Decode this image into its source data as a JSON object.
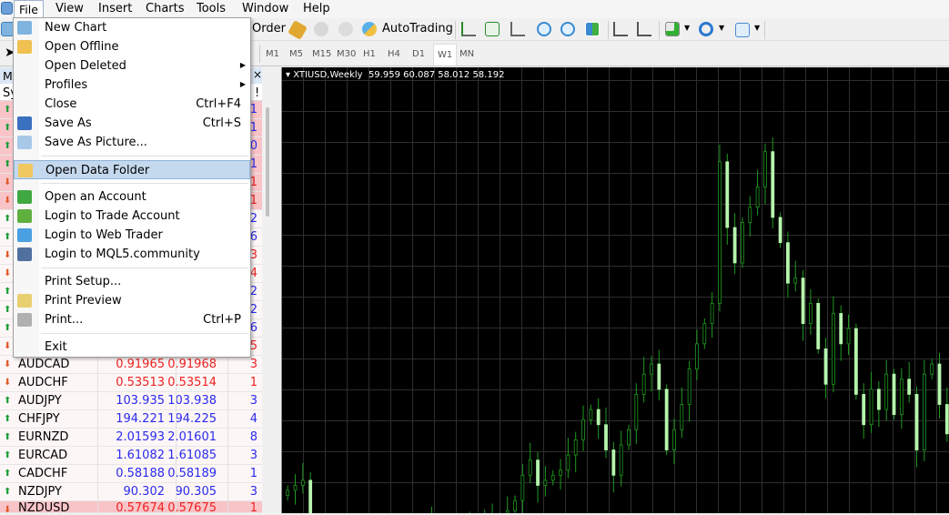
{
  "menubar": {
    "items": [
      "File",
      "View",
      "Insert",
      "Charts",
      "Tools",
      "Window",
      "Help"
    ]
  },
  "toolbar": {
    "order_label": "Order",
    "autotrading_label": "AutoTrading",
    "icons": [
      "new-order-icon",
      "expert-icon",
      "signal-icon",
      "autotrading-icon",
      "bar-chart-icon",
      "candlestick-icon",
      "line-chart-icon",
      "zoom-in-icon",
      "zoom-out-icon",
      "tile-windows-icon",
      "chart-shift-icon",
      "autoscroll-icon",
      "indicators-icon",
      "periods-icon",
      "templates-icon"
    ]
  },
  "timeframes": {
    "items": [
      "M1",
      "M5",
      "M15",
      "M30",
      "H1",
      "H4",
      "D1",
      "W1",
      "MN"
    ],
    "active": "W1"
  },
  "market_watch": {
    "title": "Ma",
    "header_symbol": "Sy",
    "header_spread": "!",
    "close": "×",
    "rows": [
      {
        "dir": "up",
        "symbol": "",
        "bid": "",
        "ask": "",
        "spread": "1",
        "color": "blue",
        "hl": true
      },
      {
        "dir": "up",
        "symbol": "",
        "bid": "",
        "ask": "",
        "spread": "1",
        "color": "blue",
        "hl": true
      },
      {
        "dir": "up",
        "symbol": "",
        "bid": "",
        "ask": "",
        "spread": "0",
        "color": "blue",
        "hl": true
      },
      {
        "dir": "up",
        "symbol": "",
        "bid": "",
        "ask": "",
        "spread": "1",
        "color": "blue",
        "hl": true
      },
      {
        "dir": "down",
        "symbol": "",
        "bid": "",
        "ask": "",
        "spread": "1",
        "color": "red",
        "hl": true
      },
      {
        "dir": "down",
        "symbol": "",
        "bid": "",
        "ask": "",
        "spread": "1",
        "color": "red",
        "hl": true
      },
      {
        "dir": "up",
        "symbol": "",
        "bid": "",
        "ask": "",
        "spread": "2",
        "color": "blue",
        "hl": false
      },
      {
        "dir": "up",
        "symbol": "",
        "bid": "",
        "ask": "",
        "spread": "6",
        "color": "blue",
        "hl": false
      },
      {
        "dir": "down",
        "symbol": "",
        "bid": "",
        "ask": "",
        "spread": "3",
        "color": "red",
        "hl": false
      },
      {
        "dir": "down",
        "symbol": "",
        "bid": "",
        "ask": "",
        "spread": "4",
        "color": "red",
        "hl": false
      },
      {
        "dir": "up",
        "symbol": "",
        "bid": "",
        "ask": "",
        "spread": "2",
        "color": "blue",
        "hl": false
      },
      {
        "dir": "up",
        "symbol": "",
        "bid": "",
        "ask": "",
        "spread": "2",
        "color": "blue",
        "hl": false
      },
      {
        "dir": "up",
        "symbol": "",
        "bid": "",
        "ask": "",
        "spread": "6",
        "color": "blue",
        "hl": false
      },
      {
        "dir": "down",
        "symbol": "",
        "bid": "",
        "ask": "",
        "spread": "5",
        "color": "red",
        "hl": false
      },
      {
        "dir": "down",
        "symbol": "AUDCAD",
        "bid": "0.91965",
        "ask": "0.91968",
        "spread": "3",
        "color": "red",
        "hl": false
      },
      {
        "dir": "down",
        "symbol": "AUDCHF",
        "bid": "0.53513",
        "ask": "0.53514",
        "spread": "1",
        "color": "red",
        "hl": false
      },
      {
        "dir": "up",
        "symbol": "AUDJPY",
        "bid": "103.935",
        "ask": "103.938",
        "spread": "3",
        "color": "blue",
        "hl": false
      },
      {
        "dir": "up",
        "symbol": "CHFJPY",
        "bid": "194.221",
        "ask": "194.225",
        "spread": "4",
        "color": "blue",
        "hl": false
      },
      {
        "dir": "up",
        "symbol": "EURNZD",
        "bid": "2.01593",
        "ask": "2.01601",
        "spread": "8",
        "color": "blue",
        "hl": false
      },
      {
        "dir": "up",
        "symbol": "EURCAD",
        "bid": "1.61082",
        "ask": "1.61085",
        "spread": "3",
        "color": "blue",
        "hl": false
      },
      {
        "dir": "up",
        "symbol": "CADCHF",
        "bid": "0.58188",
        "ask": "0.58189",
        "spread": "1",
        "color": "blue",
        "hl": false
      },
      {
        "dir": "up",
        "symbol": "NZDJPY",
        "bid": "90.302",
        "ask": "90.305",
        "spread": "3",
        "color": "blue",
        "hl": false
      },
      {
        "dir": "down",
        "symbol": "NZDUSD",
        "bid": "0.57674",
        "ask": "0.57675",
        "spread": "1",
        "color": "red",
        "hl": true
      }
    ]
  },
  "file_menu": {
    "items": [
      {
        "label": "New Chart",
        "icon": "new-chart-icon"
      },
      {
        "label": "Open Offline",
        "icon": "open-folder-icon"
      },
      {
        "label": "Open Deleted",
        "submenu": true
      },
      {
        "label": "Profiles",
        "submenu": true
      },
      {
        "label": "Close",
        "shortcut": "Ctrl+F4"
      },
      {
        "label": "Save As",
        "shortcut": "Ctrl+S",
        "icon": "save-icon"
      },
      {
        "label": "Save As Picture...",
        "icon": "save-picture-icon"
      },
      {
        "sep": true
      },
      {
        "label": "Open Data Folder",
        "icon": "folder-icon",
        "highlighted": true
      },
      {
        "sep": true
      },
      {
        "label": "Open an Account",
        "icon": "add-account-icon"
      },
      {
        "label": "Login to Trade Account",
        "icon": "login-account-icon"
      },
      {
        "label": "Login to Web Trader",
        "icon": "web-trader-icon"
      },
      {
        "label": "Login to MQL5.community",
        "icon": "mql5-icon"
      },
      {
        "sep": true
      },
      {
        "label": "Print Setup..."
      },
      {
        "label": "Print Preview",
        "icon": "print-preview-icon"
      },
      {
        "label": "Print...",
        "shortcut": "Ctrl+P",
        "icon": "printer-icon"
      },
      {
        "sep": true
      },
      {
        "label": "Exit"
      }
    ]
  },
  "chart_data": {
    "type": "candlestick",
    "title": "XTIUSD,Weekly",
    "ohlc_readout": "59.959 60.087 58.012 58.192",
    "grid": true,
    "ylim": [
      42.5,
      127.8
    ],
    "closes": [
      47,
      48,
      49,
      38,
      36,
      35,
      34,
      33,
      34,
      35,
      37,
      38,
      37,
      36,
      39,
      40,
      39,
      38,
      40,
      41,
      40,
      39,
      38,
      40,
      39,
      40,
      41,
      40,
      41,
      43,
      45,
      50,
      53,
      48,
      49,
      50,
      51,
      54,
      57,
      61,
      63,
      60,
      55,
      50,
      56,
      59,
      66,
      70,
      72,
      67,
      55,
      59,
      64,
      71,
      76,
      80,
      84,
      112,
      99,
      92,
      100,
      103,
      107,
      114,
      101,
      96,
      88,
      89,
      80,
      84,
      75,
      68,
      82,
      76,
      79,
      66,
      60,
      67,
      63,
      70,
      62,
      69,
      66,
      55,
      70,
      72,
      64,
      58.192
    ],
    "colors": {
      "background": "#000000",
      "grid": "#2e2e2e",
      "bull": "#1f9a1f",
      "bear": "#b6f5ad"
    }
  },
  "colors": {
    "up": "#1e9e3a",
    "down": "#e05a2a",
    "blue": "#2a2aee",
    "red": "#ee2222",
    "row_highlight": "#f9c4c8",
    "menu_highlight": "#c5d9ee"
  }
}
